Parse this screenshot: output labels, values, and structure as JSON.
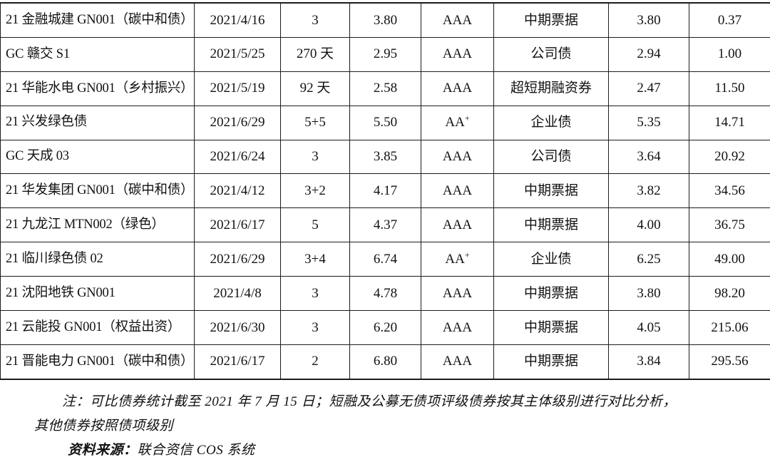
{
  "document": {
    "table": {
      "column_keys": [
        "name",
        "date",
        "term",
        "rate",
        "rating",
        "type",
        "rate2",
        "value"
      ],
      "column_semantics": [
        "bond-name",
        "issue-date",
        "term-years",
        "coupon-rate",
        "credit-rating",
        "bond-type",
        "comparable-rate",
        "spread-value"
      ],
      "rows": [
        {
          "name": "21 金融城建 GN001（碳中和债）",
          "date": "2021/4/16",
          "term": "3",
          "rate": "3.80",
          "rating": "AAA",
          "rating_sup": "",
          "type": "中期票据",
          "rate2": "3.80",
          "value": "0.37"
        },
        {
          "name": "GC 赣交 S1",
          "date": "2021/5/25",
          "term": "270 天",
          "rate": "2.95",
          "rating": "AAA",
          "rating_sup": "",
          "type": "公司债",
          "rate2": "2.94",
          "value": "1.00"
        },
        {
          "name": "21 华能水电 GN001（乡村振兴）",
          "date": "2021/5/19",
          "term": "92 天",
          "rate": "2.58",
          "rating": "AAA",
          "rating_sup": "",
          "type": "超短期融资券",
          "rate2": "2.47",
          "value": "11.50"
        },
        {
          "name": "21 兴发绿色债",
          "date": "2021/6/29",
          "term": "5+5",
          "rate": "5.50",
          "rating": "AA",
          "rating_sup": "+",
          "type": "企业债",
          "rate2": "5.35",
          "value": "14.71"
        },
        {
          "name": "GC 天成 03",
          "date": "2021/6/24",
          "term": "3",
          "rate": "3.85",
          "rating": "AAA",
          "rating_sup": "",
          "type": "公司债",
          "rate2": "3.64",
          "value": "20.92"
        },
        {
          "name": "21 华发集团 GN001（碳中和债）",
          "date": "2021/4/12",
          "term": "3+2",
          "rate": "4.17",
          "rating": "AAA",
          "rating_sup": "",
          "type": "中期票据",
          "rate2": "3.82",
          "value": "34.56"
        },
        {
          "name": "21 九龙江 MTN002（绿色）",
          "date": "2021/6/17",
          "term": "5",
          "rate": "4.37",
          "rating": "AAA",
          "rating_sup": "",
          "type": "中期票据",
          "rate2": "4.00",
          "value": "36.75"
        },
        {
          "name": "21 临川绿色债 02",
          "date": "2021/6/29",
          "term": "3+4",
          "rate": "6.74",
          "rating": "AA",
          "rating_sup": "+",
          "type": "企业债",
          "rate2": "6.25",
          "value": "49.00"
        },
        {
          "name": "21 沈阳地铁 GN001",
          "date": "2021/4/8",
          "term": "3",
          "rate": "4.78",
          "rating": "AAA",
          "rating_sup": "",
          "type": "中期票据",
          "rate2": "3.80",
          "value": "98.20"
        },
        {
          "name": "21 云能投 GN001（权益出资）",
          "date": "2021/6/30",
          "term": "3",
          "rate": "6.20",
          "rating": "AAA",
          "rating_sup": "",
          "type": "中期票据",
          "rate2": "4.05",
          "value": "215.06"
        },
        {
          "name": "21 晋能电力 GN001（碳中和债）",
          "date": "2021/6/17",
          "term": "2",
          "rate": "6.80",
          "rating": "AAA",
          "rating_sup": "",
          "type": "中期票据",
          "rate2": "3.84",
          "value": "295.56"
        }
      ]
    },
    "notes": {
      "note_line1": "注：可比债券统计截至 2021 年 7 月 15 日；短融及公募无债项评级债券按其主体级别进行对比分析，",
      "note_line2": "其他债券按照债项级别",
      "source_label": "资料来源：",
      "source_text": "联合资信 COS 系统"
    },
    "colors": {
      "text": "#111111",
      "border": "#1c1c1c",
      "background": "#ffffff"
    }
  }
}
